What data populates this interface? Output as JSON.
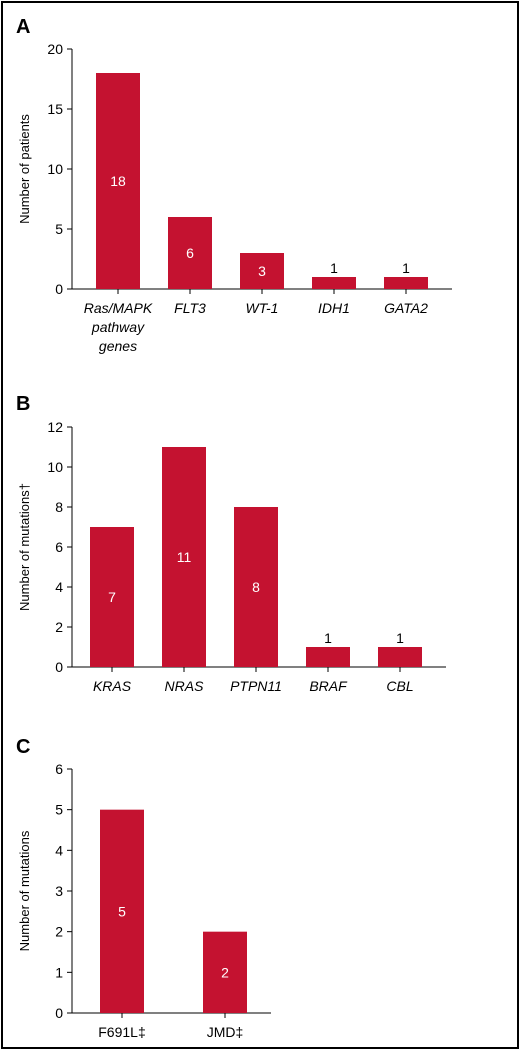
{
  "colors": {
    "bar": "#c41230",
    "label_inside": "#ffffff",
    "label_outside": "#000000",
    "axis": "#000000"
  },
  "chart_data": [
    {
      "panel": "A",
      "type": "bar",
      "categories": [
        "Ras/MAPK pathway genes",
        "FLT3",
        "WT-1",
        "IDH1",
        "GATA2"
      ],
      "category_lines": [
        [
          "Ras/MAPK",
          "pathway",
          "genes"
        ],
        [
          "FLT3"
        ],
        [
          "WT-1"
        ],
        [
          "IDH1"
        ],
        [
          "GATA2"
        ]
      ],
      "italic": true,
      "values": [
        18,
        6,
        3,
        1,
        1
      ],
      "ylabel": "Number of patients",
      "ylim": [
        0,
        20
      ],
      "yticks": [
        0,
        5,
        10,
        15,
        20
      ],
      "grid": false
    },
    {
      "panel": "B",
      "type": "bar",
      "categories": [
        "KRAS",
        "NRAS",
        "PTPN11",
        "BRAF",
        "CBL"
      ],
      "category_lines": [
        [
          "KRAS"
        ],
        [
          "NRAS"
        ],
        [
          "PTPN11"
        ],
        [
          "BRAF"
        ],
        [
          "CBL"
        ]
      ],
      "italic": true,
      "values": [
        7,
        11,
        8,
        1,
        1
      ],
      "ylabel": "Number of mutations†",
      "ylim": [
        0,
        12
      ],
      "yticks": [
        0,
        2,
        4,
        6,
        8,
        10,
        12
      ],
      "grid": false
    },
    {
      "panel": "C",
      "type": "bar",
      "categories": [
        "F691L‡",
        "JMD‡"
      ],
      "category_lines": [
        [
          "F691L‡"
        ],
        [
          "JMD‡"
        ]
      ],
      "italic": false,
      "values": [
        5,
        2
      ],
      "ylabel": "Number of mutations",
      "ylim": [
        0,
        6
      ],
      "yticks": [
        0,
        1,
        2,
        3,
        4,
        5,
        6
      ],
      "grid": false
    }
  ]
}
